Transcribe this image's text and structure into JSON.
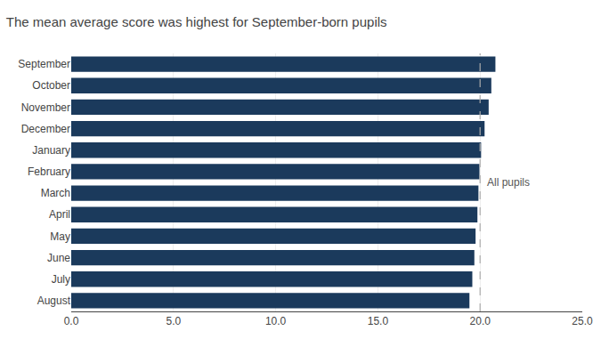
{
  "chart_data": {
    "type": "bar",
    "orientation": "horizontal",
    "title": "The mean average score was highest for September-born pupils",
    "categories": [
      "September",
      "October",
      "November",
      "December",
      "January",
      "February",
      "March",
      "April",
      "May",
      "June",
      "July",
      "August"
    ],
    "values": [
      20.75,
      20.55,
      20.42,
      20.22,
      20.05,
      19.97,
      19.92,
      19.87,
      19.78,
      19.72,
      19.62,
      19.48
    ],
    "color": "#1b3a5c",
    "xlim": [
      0,
      25
    ],
    "xticks": [
      {
        "value": 0,
        "label": "0.0"
      },
      {
        "value": 5,
        "label": "5.0"
      },
      {
        "value": 10,
        "label": "10.0"
      },
      {
        "value": 15,
        "label": "15.0"
      },
      {
        "value": 20,
        "label": "20.0"
      },
      {
        "value": 25,
        "label": "25.0"
      }
    ],
    "grid": true,
    "reference_lines": [
      {
        "value": 20.0,
        "label": "All pupils",
        "color": "#aaaaaa",
        "line_style": "dashed"
      }
    ]
  }
}
